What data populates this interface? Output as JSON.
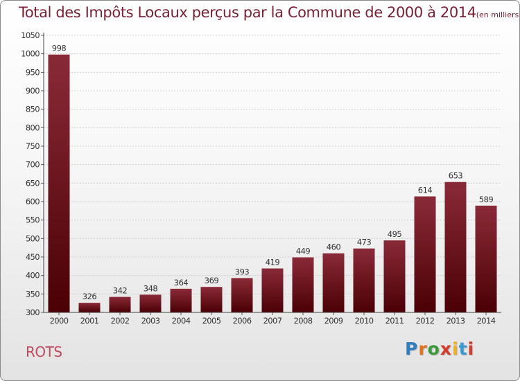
{
  "chart_data": {
    "type": "bar",
    "title": "Total des Impôts Locaux perçus par la Commune de 2000 à 2014",
    "title_unit": "(en milliers d'€)",
    "categories": [
      "2000",
      "2001",
      "2002",
      "2003",
      "2004",
      "2005",
      "2006",
      "2007",
      "2008",
      "2009",
      "2010",
      "2011",
      "2012",
      "2013",
      "2014"
    ],
    "values": [
      998,
      326,
      342,
      348,
      364,
      369,
      393,
      419,
      449,
      460,
      473,
      495,
      614,
      653,
      589
    ],
    "ylim": [
      300,
      1050
    ],
    "yticks": [
      300,
      350,
      400,
      450,
      500,
      550,
      600,
      650,
      700,
      750,
      800,
      850,
      900,
      950,
      1000,
      1050
    ],
    "xlabel": "",
    "ylabel": "",
    "grid": "horizontal",
    "bar_color": "#6e0f1c"
  },
  "footer": {
    "commune": "ROTS",
    "brand": "Proxiti"
  }
}
